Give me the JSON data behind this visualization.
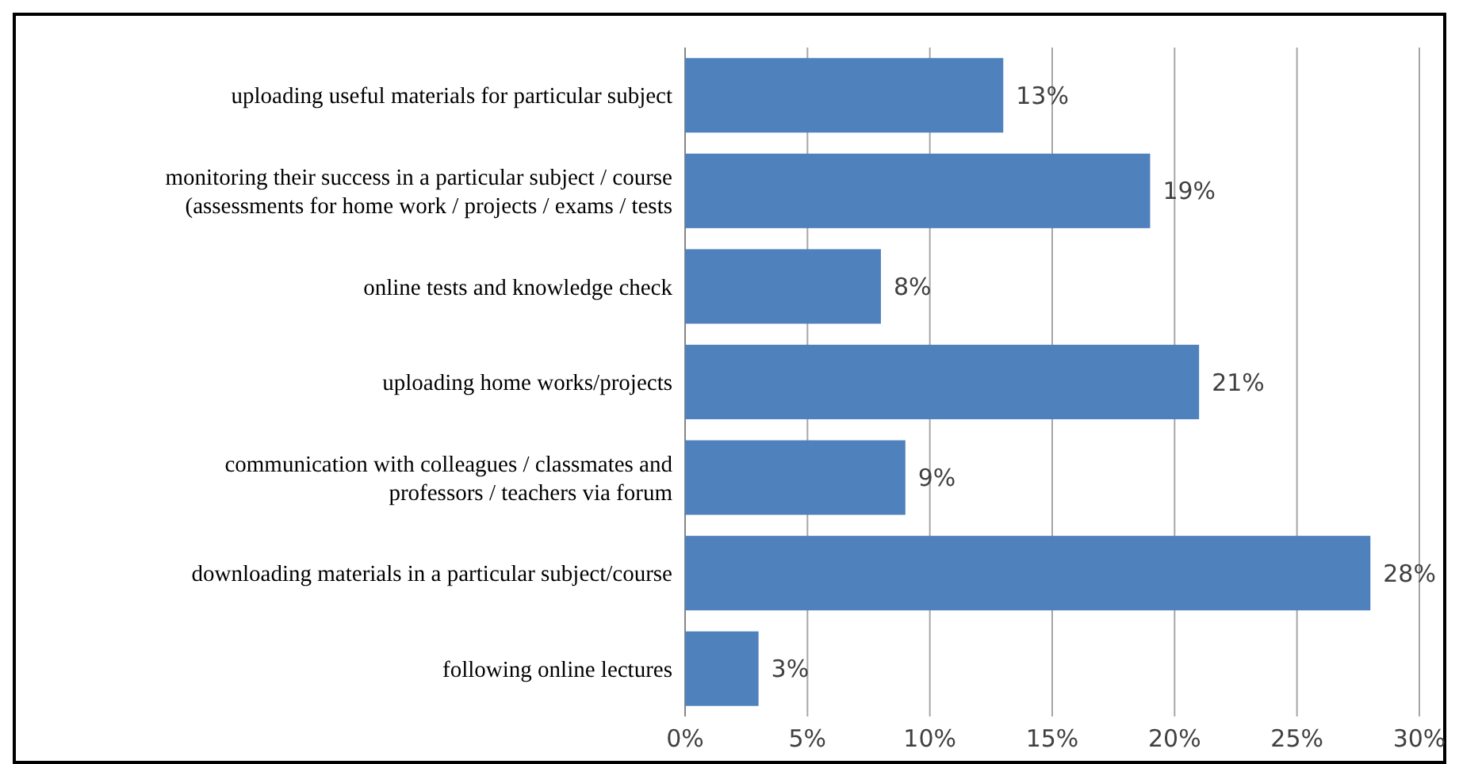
{
  "chart_data": {
    "type": "bar",
    "orientation": "horizontal",
    "categories": [
      "uploading useful materials for  particular subject",
      "monitoring their success in a particular subject / course\n(assessments for home work / projects / exams / tests",
      "online tests and knowledge check",
      "uploading home works/projects",
      "communication with colleagues / classmates and\nprofessors / teachers via forum",
      "downloading materials in a particular subject/course",
      "following online lectures"
    ],
    "values": [
      13,
      19,
      8,
      21,
      9,
      28,
      3
    ],
    "value_labels": [
      "13%",
      "19%",
      "8%",
      "21%",
      "9%",
      "28%",
      "3%"
    ],
    "color": "#4f81bd",
    "xlim": [
      0,
      30
    ],
    "xticks": [
      {
        "value": 0,
        "label": "0%"
      },
      {
        "value": 5,
        "label": "5%"
      },
      {
        "value": 10,
        "label": "10%"
      },
      {
        "value": 15,
        "label": "15%"
      },
      {
        "value": 20,
        "label": "20%"
      },
      {
        "value": 25,
        "label": "25%"
      },
      {
        "value": 30,
        "label": "30%"
      }
    ],
    "grid": "x"
  }
}
